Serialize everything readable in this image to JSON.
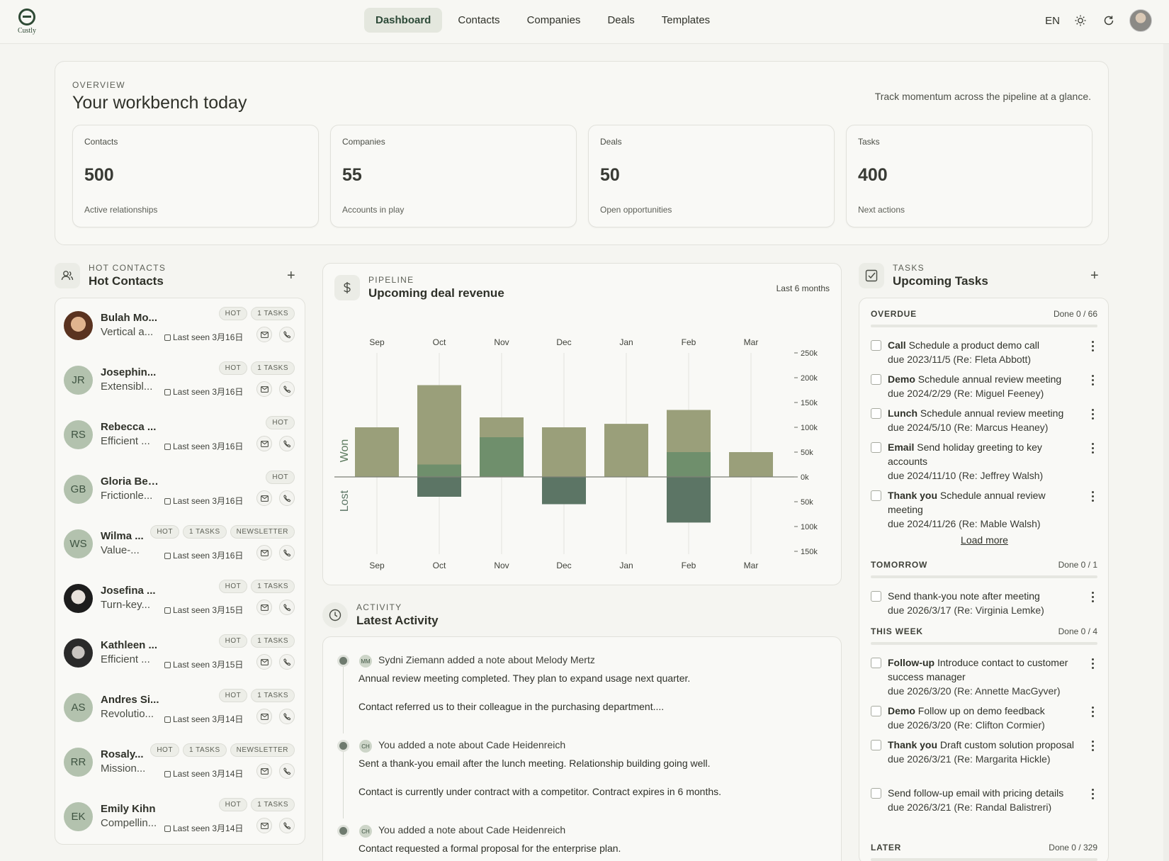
{
  "app": {
    "logo_text": "Custly"
  },
  "nav": {
    "items": [
      {
        "label": "Dashboard",
        "active": true
      },
      {
        "label": "Contacts",
        "active": false
      },
      {
        "label": "Companies",
        "active": false
      },
      {
        "label": "Deals",
        "active": false
      },
      {
        "label": "Templates",
        "active": false
      }
    ],
    "lang": "EN"
  },
  "overview": {
    "eyebrow": "OVERVIEW",
    "title": "Your workbench today",
    "subtitle": "Track momentum across the pipeline at a glance.",
    "stats": [
      {
        "label": "Contacts",
        "value": "500",
        "note": "Active relationships"
      },
      {
        "label": "Companies",
        "value": "55",
        "note": "Accounts in play"
      },
      {
        "label": "Deals",
        "value": "50",
        "note": "Open opportunities"
      },
      {
        "label": "Tasks",
        "value": "400",
        "note": "Next actions"
      }
    ]
  },
  "hot_contacts": {
    "eyebrow": "HOT CONTACTS",
    "title": "Hot Contacts",
    "items": [
      {
        "initials": "",
        "photo": "photo1",
        "name": "Bulah Mo...",
        "desc": "Vertical a...",
        "tags": [
          "HOT",
          "1 TASKS"
        ],
        "seen": "Last seen 3月16日"
      },
      {
        "initials": "JR",
        "photo": "",
        "name": "Josephin...",
        "desc": "Extensibl...",
        "tags": [
          "HOT",
          "1 TASKS"
        ],
        "seen": "Last seen 3月16日"
      },
      {
        "initials": "RS",
        "photo": "",
        "name": "Rebecca ...",
        "desc": "Efficient ...",
        "tags": [
          "HOT"
        ],
        "seen": "Last seen 3月16日"
      },
      {
        "initials": "GB",
        "photo": "",
        "name": "Gloria Beier",
        "desc": "Frictionle...",
        "tags": [
          "HOT"
        ],
        "seen": "Last seen 3月16日"
      },
      {
        "initials": "WS",
        "photo": "",
        "name": "Wilma ...",
        "desc": "Value-...",
        "tags": [
          "HOT",
          "1 TASKS",
          "NEWSLETTER"
        ],
        "seen": "Last seen 3月16日"
      },
      {
        "initials": "",
        "photo": "photo2",
        "name": "Josefina ...",
        "desc": "Turn-key...",
        "tags": [
          "HOT",
          "1 TASKS"
        ],
        "seen": "Last seen 3月15日"
      },
      {
        "initials": "",
        "photo": "photo3",
        "name": "Kathleen ...",
        "desc": "Efficient ...",
        "tags": [
          "HOT",
          "1 TASKS"
        ],
        "seen": "Last seen 3月15日"
      },
      {
        "initials": "AS",
        "photo": "",
        "name": "Andres Si...",
        "desc": "Revolutio...",
        "tags": [
          "HOT",
          "1 TASKS"
        ],
        "seen": "Last seen 3月14日"
      },
      {
        "initials": "RR",
        "photo": "",
        "name": "Rosaly...",
        "desc": "Mission...",
        "tags": [
          "HOT",
          "1 TASKS",
          "NEWSLETTER"
        ],
        "seen": "Last seen 3月14日"
      },
      {
        "initials": "EK",
        "photo": "",
        "name": "Emily Kihn",
        "desc": "Compellin...",
        "tags": [
          "HOT",
          "1 TASKS"
        ],
        "seen": "Last seen 3月14日"
      }
    ]
  },
  "pipeline": {
    "eyebrow": "PIPELINE",
    "title": "Upcoming deal revenue",
    "range": "Last 6 months"
  },
  "chart_data": {
    "type": "bar",
    "categories": [
      "Sep",
      "Oct",
      "Nov",
      "Dec",
      "Jan",
      "Feb",
      "Mar"
    ],
    "series": [
      {
        "name": "Won",
        "segments": [
          [
            100000
          ],
          [
            25000,
            160000
          ],
          [
            80000,
            40000
          ],
          [
            100000
          ],
          [
            107000
          ],
          [
            50000,
            85000
          ],
          [
            50000
          ]
        ]
      },
      {
        "name": "Lost",
        "values": [
          0,
          40000,
          0,
          55000,
          0,
          92000,
          0
        ]
      }
    ],
    "y_labels": [
      "250k",
      "200k",
      "150k",
      "100k",
      "50k",
      "0k",
      "50k",
      "100k",
      "150k"
    ],
    "ylim": [
      -150000,
      250000
    ],
    "colors": {
      "won_light": "#9a9f7a",
      "won_dark": "#6f8f6c",
      "lost": "#5c7565"
    }
  },
  "activity": {
    "eyebrow": "ACTIVITY",
    "title": "Latest Activity",
    "items": [
      {
        "badge": "MM",
        "head": "Sydni Ziemann added a note about Melody Mertz",
        "lines": [
          "Annual review meeting completed. They plan to expand usage next quarter.",
          "Contact referred us to their colleague in the purchasing department...."
        ]
      },
      {
        "badge": "CH",
        "head": "You added a note about Cade Heidenreich",
        "lines": [
          "Sent a thank-you email after the lunch meeting. Relationship building going well.",
          "Contact is currently under contract with a competitor. Contract expires in 6 months."
        ]
      },
      {
        "badge": "CH",
        "head": "You added a note about Cade Heidenreich",
        "lines": [
          "Contact requested a formal proposal for the enterprise plan."
        ]
      }
    ]
  },
  "tasks": {
    "eyebrow": "TASKS",
    "title": "Upcoming Tasks",
    "load_more": "Load more",
    "groups": [
      {
        "name": "OVERDUE",
        "done": "Done 0 / 66"
      },
      {
        "name": "TOMORROW",
        "done": "Done 0 / 1"
      },
      {
        "name": "THIS WEEK",
        "done": "Done 0 / 4"
      },
      {
        "name": "LATER",
        "done": "Done 0 / 329"
      }
    ],
    "overdue": [
      {
        "type": "Call",
        "text": "Schedule a product demo call",
        "due": "due 2023/11/5 (Re: Fleta Abbott)"
      },
      {
        "type": "Demo",
        "text": "Schedule annual review meeting",
        "due": "due 2024/2/29 (Re: Miguel Feeney)"
      },
      {
        "type": "Lunch",
        "text": "Schedule annual review meeting",
        "due": "due 2024/5/10 (Re: Marcus Heaney)"
      },
      {
        "type": "Email",
        "text": "Send holiday greeting to key accounts",
        "due": "due 2024/11/10 (Re: Jeffrey Walsh)"
      },
      {
        "type": "Thank you",
        "text": "Schedule annual review meeting",
        "due": "due 2024/11/26 (Re: Mable Walsh)"
      }
    ],
    "tomorrow": [
      {
        "type": "",
        "text": "Send thank-you note after meeting",
        "due": "due 2026/3/17 (Re: Virginia Lemke)"
      }
    ],
    "this_week": [
      {
        "type": "Follow-up",
        "text": "Introduce contact to customer success manager",
        "due": "due 2026/3/20 (Re: Annette MacGyver)"
      },
      {
        "type": "Demo",
        "text": "Follow up on demo feedback",
        "due": "due 2026/3/20 (Re: Clifton Cormier)"
      },
      {
        "type": "Thank you",
        "text": "Draft custom solution proposal",
        "due": "due 2026/3/21 (Re: Margarita Hickle)"
      },
      {
        "type": "",
        "text": "Send follow-up email with pricing details",
        "due": "due 2026/3/21 (Re: Randal Balistreri)"
      }
    ]
  }
}
